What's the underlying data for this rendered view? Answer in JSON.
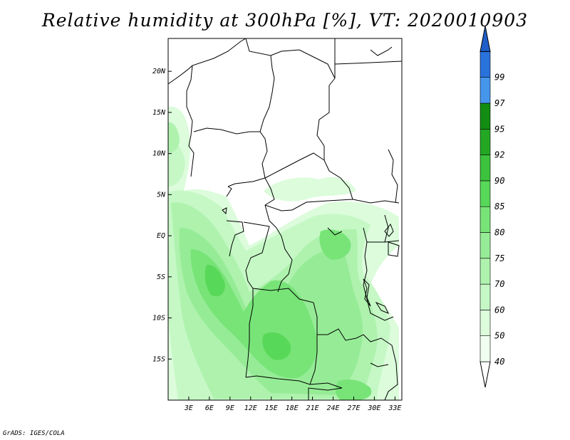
{
  "title": "Relative humidity at 300hPa [%], VT: 2020010903",
  "credit": "GrADS: IGES/COLA",
  "map": {
    "lon_range": [
      0,
      34
    ],
    "lat_range": [
      -20,
      24
    ],
    "lat_ticks": [
      {
        "lat": 20,
        "label": "20N"
      },
      {
        "lat": 15,
        "label": "15N"
      },
      {
        "lat": 10,
        "label": "10N"
      },
      {
        "lat": 5,
        "label": "5N"
      },
      {
        "lat": 0,
        "label": "EQ"
      },
      {
        "lat": -5,
        "label": "5S"
      },
      {
        "lat": -10,
        "label": "10S"
      },
      {
        "lat": -15,
        "label": "15S"
      }
    ],
    "lon_ticks": [
      {
        "lon": 3,
        "label": "3E"
      },
      {
        "lon": 6,
        "label": "6E"
      },
      {
        "lon": 9,
        "label": "9E"
      },
      {
        "lon": 12,
        "label": "12E"
      },
      {
        "lon": 15,
        "label": "15E"
      },
      {
        "lon": 18,
        "label": "18E"
      },
      {
        "lon": 21,
        "label": "21E"
      },
      {
        "lon": 24,
        "label": "24E"
      },
      {
        "lon": 27,
        "label": "27E"
      },
      {
        "lon": 30,
        "label": "30E"
      },
      {
        "lon": 33,
        "label": "33E"
      }
    ]
  },
  "colorbar": {
    "levels": [
      {
        "label": "40",
        "color": "#f0fef0"
      },
      {
        "label": "50",
        "color": "#dcfcdc"
      },
      {
        "label": "60",
        "color": "#c6f8c6"
      },
      {
        "label": "70",
        "color": "#aef2ae"
      },
      {
        "label": "75",
        "color": "#96ec96"
      },
      {
        "label": "80",
        "color": "#78e478"
      },
      {
        "label": "85",
        "color": "#58d858"
      },
      {
        "label": "90",
        "color": "#3cc23c"
      },
      {
        "label": "92",
        "color": "#24a824"
      },
      {
        "label": "95",
        "color": "#128c12"
      },
      {
        "label": "97",
        "color": "#4696ec"
      },
      {
        "label": "99",
        "color": "#2a72dc"
      }
    ],
    "bottom_color": "#ffffff",
    "top_color": "#1e5ec8"
  }
}
